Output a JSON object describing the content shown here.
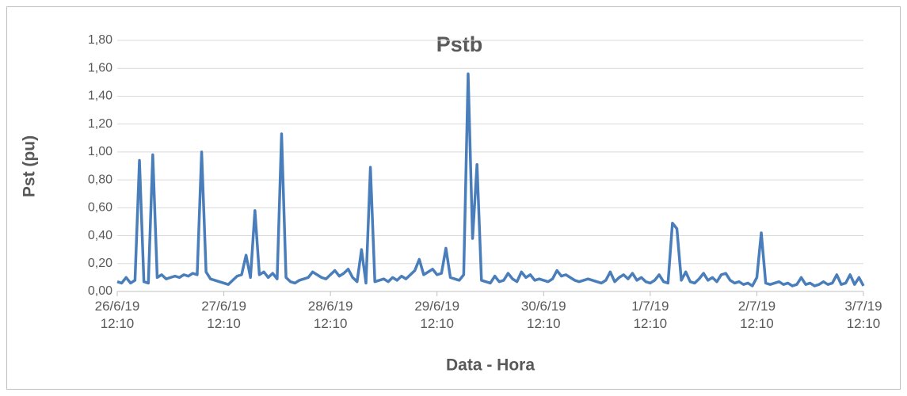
{
  "chart_data": {
    "type": "line",
    "title": "Pstb",
    "ylabel": "Pst (pu)",
    "xlabel": "Data - Hora",
    "categories": [
      "26/6/19 12:10",
      null,
      null,
      null,
      null,
      null,
      null,
      null,
      null,
      null,
      null,
      null,
      null,
      null,
      null,
      null,
      null,
      null,
      null,
      null,
      null,
      null,
      null,
      null,
      "27/6/19 12:10",
      null,
      null,
      null,
      null,
      null,
      null,
      null,
      null,
      null,
      null,
      null,
      null,
      null,
      null,
      null,
      null,
      null,
      null,
      null,
      null,
      null,
      null,
      null,
      "28/6/19 12:10",
      null,
      null,
      null,
      null,
      null,
      null,
      null,
      null,
      null,
      null,
      null,
      null,
      null,
      null,
      null,
      null,
      null,
      null,
      null,
      null,
      null,
      null,
      null,
      "29/6/19 12:10",
      null,
      null,
      null,
      null,
      null,
      null,
      null,
      null,
      null,
      null,
      null,
      null,
      null,
      null,
      null,
      null,
      null,
      null,
      null,
      null,
      null,
      null,
      null,
      "30/6/19 12:10",
      null,
      null,
      null,
      null,
      null,
      null,
      null,
      null,
      null,
      null,
      null,
      null,
      null,
      null,
      null,
      null,
      null,
      null,
      null,
      null,
      null,
      null,
      null,
      "1/7/19 12:10",
      null,
      null,
      null,
      null,
      null,
      null,
      null,
      null,
      null,
      null,
      null,
      null,
      null,
      null,
      null,
      null,
      null,
      null,
      null,
      null,
      null,
      null,
      null,
      "2/7/19 12:10",
      null,
      null,
      null,
      null,
      null,
      null,
      null,
      null,
      null,
      null,
      null,
      null,
      null,
      null,
      null,
      null,
      null,
      null,
      null,
      null,
      null,
      null,
      null,
      "3/7/19 12:10"
    ],
    "series": [
      {
        "name": "Pstb",
        "color": "#4a7ebb",
        "values": [
          0.07,
          0.06,
          0.1,
          0.06,
          0.08,
          0.94,
          0.07,
          0.06,
          0.98,
          0.1,
          0.12,
          0.09,
          0.1,
          0.11,
          0.1,
          0.12,
          0.11,
          0.13,
          0.12,
          1.0,
          0.14,
          0.09,
          0.08,
          0.07,
          0.06,
          0.05,
          0.08,
          0.11,
          0.12,
          0.26,
          0.1,
          0.58,
          0.12,
          0.14,
          0.1,
          0.13,
          0.09,
          1.13,
          0.1,
          0.07,
          0.06,
          0.08,
          0.09,
          0.1,
          0.14,
          0.12,
          0.1,
          0.09,
          0.12,
          0.15,
          0.11,
          0.13,
          0.16,
          0.1,
          0.07,
          0.3,
          0.06,
          0.89,
          0.07,
          0.08,
          0.09,
          0.07,
          0.1,
          0.08,
          0.11,
          0.09,
          0.12,
          0.15,
          0.23,
          0.12,
          0.14,
          0.16,
          0.12,
          0.13,
          0.31,
          0.1,
          0.09,
          0.08,
          0.12,
          1.56,
          0.38,
          0.91,
          0.08,
          0.07,
          0.06,
          0.11,
          0.07,
          0.08,
          0.13,
          0.09,
          0.07,
          0.14,
          0.1,
          0.12,
          0.08,
          0.09,
          0.08,
          0.07,
          0.09,
          0.15,
          0.11,
          0.12,
          0.1,
          0.08,
          0.07,
          0.08,
          0.09,
          0.08,
          0.07,
          0.06,
          0.08,
          0.14,
          0.07,
          0.1,
          0.12,
          0.09,
          0.13,
          0.08,
          0.1,
          0.07,
          0.06,
          0.08,
          0.12,
          0.07,
          0.06,
          0.49,
          0.45,
          0.08,
          0.14,
          0.07,
          0.06,
          0.09,
          0.13,
          0.08,
          0.1,
          0.07,
          0.12,
          0.13,
          0.08,
          0.06,
          0.07,
          0.05,
          0.06,
          0.04,
          0.1,
          0.42,
          0.06,
          0.05,
          0.06,
          0.07,
          0.05,
          0.06,
          0.04,
          0.05,
          0.1,
          0.05,
          0.06,
          0.04,
          0.05,
          0.07,
          0.05,
          0.06,
          0.12,
          0.05,
          0.06,
          0.12,
          0.05,
          0.1,
          0.04
        ]
      }
    ],
    "ylim": [
      0,
      1.8
    ],
    "yticks": [
      {
        "value": 0,
        "label": "0,00"
      },
      {
        "value": 0.2,
        "label": "0,20"
      },
      {
        "value": 0.4,
        "label": "0,40"
      },
      {
        "value": 0.6,
        "label": "0,60"
      },
      {
        "value": 0.8,
        "label": "0,80"
      },
      {
        "value": 1.0,
        "label": "1,00"
      },
      {
        "value": 1.2,
        "label": "1,20"
      },
      {
        "value": 1.4,
        "label": "1,40"
      },
      {
        "value": 1.6,
        "label": "1,60"
      },
      {
        "value": 1.8,
        "label": "1,80"
      }
    ],
    "grid": true
  }
}
